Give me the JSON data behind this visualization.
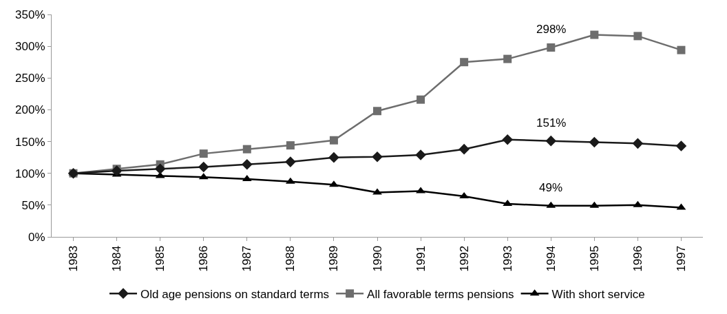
{
  "chart_data": {
    "type": "line",
    "categories": [
      "1983",
      "1984",
      "1985",
      "1986",
      "1987",
      "1988",
      "1989",
      "1990",
      "1991",
      "1992",
      "1993",
      "1994",
      "1995",
      "1996",
      "1997"
    ],
    "series": [
      {
        "name": "Old age pensions on standard terms",
        "color": "#1a1a1a",
        "marker": "diamond",
        "values": [
          100,
          104,
          107,
          110,
          114,
          118,
          125,
          126,
          129,
          138,
          153,
          151,
          149,
          147,
          143
        ]
      },
      {
        "name": "All favorable terms pensions",
        "color": "#6d6d6d",
        "marker": "square",
        "values": [
          100,
          107,
          114,
          131,
          138,
          144,
          152,
          198,
          216,
          275,
          280,
          298,
          318,
          316,
          294
        ]
      },
      {
        "name": "With short service",
        "color": "#000000",
        "marker": "triangle",
        "values": [
          100,
          98,
          96,
          94,
          91,
          87,
          82,
          70,
          72,
          64,
          52,
          49,
          49,
          50,
          46
        ]
      }
    ],
    "annotations": [
      {
        "text": "298%",
        "x": "1994",
        "y": 298
      },
      {
        "text": "151%",
        "x": "1994",
        "y": 151
      },
      {
        "text": "49%",
        "x": "1994",
        "y": 49
      }
    ],
    "ylim": [
      0,
      350
    ],
    "yticks": [
      {
        "value": 0,
        "label": "0%"
      },
      {
        "value": 50,
        "label": "50%"
      },
      {
        "value": 100,
        "label": "100%"
      },
      {
        "value": 150,
        "label": "150%"
      },
      {
        "value": 200,
        "label": "200%"
      },
      {
        "value": 250,
        "label": "250%"
      },
      {
        "value": 300,
        "label": "300%"
      },
      {
        "value": 350,
        "label": "350%"
      }
    ],
    "legend": "bottom",
    "line_style": "solid"
  }
}
